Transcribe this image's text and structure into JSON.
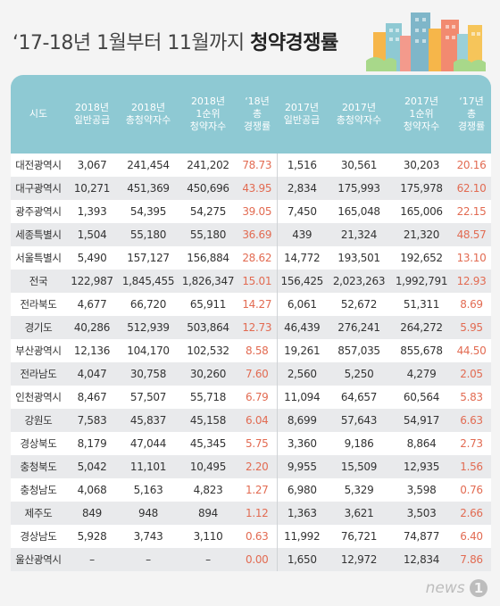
{
  "title": {
    "part1": "‘17-18년 1월부터 11월까지 ",
    "part2": "청약경쟁률"
  },
  "headers": [
    "시도",
    "2018년\n일반공급",
    "2018년\n총청약자수",
    "2018년\n1순위\n청약자수",
    "‘18년\n총\n경쟁률",
    "2017년\n일반공급",
    "2017년\n총청약자수",
    "2017년\n1순위\n청약자수",
    "‘17년\n총\n경쟁률"
  ],
  "rows": [
    [
      "대전광역시",
      "3,067",
      "241,454",
      "241,202",
      "78.73",
      "1,516",
      "30,561",
      "30,203",
      "20.16"
    ],
    [
      "대구광역시",
      "10,271",
      "451,369",
      "450,696",
      "43.95",
      "2,834",
      "175,993",
      "175,978",
      "62.10"
    ],
    [
      "광주광역시",
      "1,393",
      "54,395",
      "54,275",
      "39.05",
      "7,450",
      "165,048",
      "165,006",
      "22.15"
    ],
    [
      "세종특별시",
      "1,504",
      "55,180",
      "55,180",
      "36.69",
      "439",
      "21,324",
      "21,320",
      "48.57"
    ],
    [
      "서울특별시",
      "5,490",
      "157,127",
      "156,884",
      "28.62",
      "14,772",
      "193,501",
      "192,652",
      "13.10"
    ],
    [
      "전국",
      "122,987",
      "1,845,455",
      "1,826,347",
      "15.01",
      "156,425",
      "2,023,263",
      "1,992,791",
      "12.93"
    ],
    [
      "전라북도",
      "4,677",
      "66,720",
      "65,911",
      "14.27",
      "6,061",
      "52,672",
      "51,311",
      "8.69"
    ],
    [
      "경기도",
      "40,286",
      "512,939",
      "503,864",
      "12.73",
      "46,439",
      "276,241",
      "264,272",
      "5.95"
    ],
    [
      "부산광역시",
      "12,136",
      "104,170",
      "102,532",
      "8.58",
      "19,261",
      "857,035",
      "855,678",
      "44.50"
    ],
    [
      "전라남도",
      "4,047",
      "30,758",
      "30,260",
      "7.60",
      "2,560",
      "5,250",
      "4,279",
      "2.05"
    ],
    [
      "인천광역시",
      "8,467",
      "57,507",
      "55,718",
      "6.79",
      "11,094",
      "64,657",
      "60,564",
      "5.83"
    ],
    [
      "강원도",
      "7,583",
      "45,837",
      "45,158",
      "6.04",
      "8,699",
      "57,643",
      "54,917",
      "6.63"
    ],
    [
      "경상북도",
      "8,179",
      "47,044",
      "45,345",
      "5.75",
      "3,360",
      "9,186",
      "8,864",
      "2.73"
    ],
    [
      "충청북도",
      "5,042",
      "11,101",
      "10,495",
      "2.20",
      "9,955",
      "15,509",
      "12,935",
      "1.56"
    ],
    [
      "충청남도",
      "4,068",
      "5,163",
      "4,823",
      "1.27",
      "6,980",
      "5,329",
      "3,598",
      "0.76"
    ],
    [
      "제주도",
      "849",
      "948",
      "894",
      "1.12",
      "1,363",
      "3,621",
      "3,503",
      "2.66"
    ],
    [
      "경상남도",
      "5,928",
      "3,743",
      "3,110",
      "0.63",
      "11,992",
      "76,721",
      "74,877",
      "6.40"
    ],
    [
      "울산광역시",
      "–",
      "–",
      "–",
      "0.00",
      "1,650",
      "12,972",
      "12,834",
      "7.86"
    ]
  ],
  "logo": {
    "text": "news",
    "badge": "1"
  },
  "colors": {
    "header_bg": "#8ec9d3",
    "rate_text": "#e26b52",
    "row_alt": "#e9eaec"
  }
}
